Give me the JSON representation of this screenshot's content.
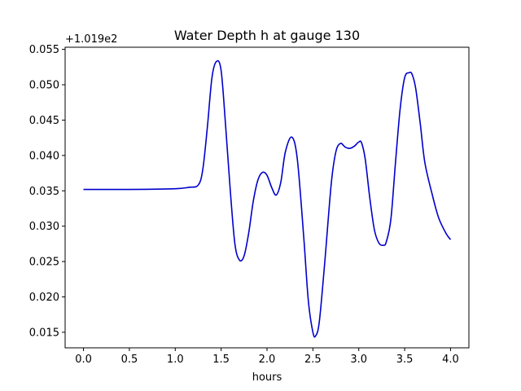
{
  "chart_data": {
    "type": "line",
    "title": "Water Depth h at gauge 130",
    "xlabel": "hours",
    "ylabel": "",
    "offset_label": "+1.019e2",
    "xlim": [
      -0.2,
      4.2
    ],
    "ylim": [
      0.0128,
      0.0553
    ],
    "xticks": [
      0.0,
      0.5,
      1.0,
      1.5,
      2.0,
      2.5,
      3.0,
      3.5,
      4.0
    ],
    "xtick_labels": [
      "0.0",
      "0.5",
      "1.0",
      "1.5",
      "2.0",
      "2.5",
      "3.0",
      "3.5",
      "4.0"
    ],
    "yticks": [
      0.015,
      0.02,
      0.025,
      0.03,
      0.035,
      0.04,
      0.045,
      0.05,
      0.055
    ],
    "ytick_labels": [
      "0.015",
      "0.020",
      "0.025",
      "0.030",
      "0.035",
      "0.040",
      "0.045",
      "0.050",
      "0.055"
    ],
    "grid": false,
    "series": [
      {
        "color": "#0000cc",
        "x": [
          0.0,
          0.5,
          1.0,
          1.15,
          1.25,
          1.3,
          1.35,
          1.4,
          1.45,
          1.5,
          1.55,
          1.6,
          1.65,
          1.7,
          1.75,
          1.8,
          1.85,
          1.9,
          1.95,
          2.0,
          2.05,
          2.1,
          2.15,
          2.2,
          2.27,
          2.33,
          2.4,
          2.45,
          2.5,
          2.53,
          2.57,
          2.63,
          2.7,
          2.75,
          2.8,
          2.85,
          2.9,
          2.95,
          3.0,
          3.03,
          3.07,
          3.12,
          3.17,
          3.22,
          3.27,
          3.3,
          3.35,
          3.4,
          3.45,
          3.5,
          3.55,
          3.58,
          3.62,
          3.67,
          3.72,
          3.8,
          3.87,
          3.95,
          4.0
        ],
        "y": [
          0.0352,
          0.0352,
          0.0353,
          0.0355,
          0.0358,
          0.038,
          0.044,
          0.051,
          0.0533,
          0.052,
          0.044,
          0.035,
          0.0275,
          0.0252,
          0.0258,
          0.029,
          0.0335,
          0.0365,
          0.0376,
          0.0372,
          0.0355,
          0.0344,
          0.0362,
          0.0405,
          0.0426,
          0.0395,
          0.0285,
          0.0195,
          0.015,
          0.0145,
          0.0165,
          0.025,
          0.036,
          0.0405,
          0.0417,
          0.0412,
          0.041,
          0.0413,
          0.0419,
          0.0418,
          0.0395,
          0.034,
          0.0295,
          0.0276,
          0.0273,
          0.0278,
          0.031,
          0.039,
          0.0465,
          0.051,
          0.0517,
          0.0515,
          0.0495,
          0.0445,
          0.039,
          0.0345,
          0.0312,
          0.029,
          0.0281
        ]
      }
    ]
  }
}
